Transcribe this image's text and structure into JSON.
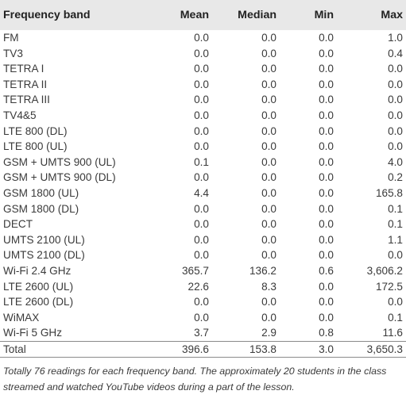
{
  "table": {
    "headers": [
      "Frequency band",
      "Mean",
      "Median",
      "Min",
      "Max"
    ],
    "rows": [
      [
        "FM",
        "0.0",
        "0.0",
        "0.0",
        "1.0"
      ],
      [
        "TV3",
        "0.0",
        "0.0",
        "0.0",
        "0.4"
      ],
      [
        "TETRA I",
        "0.0",
        "0.0",
        "0.0",
        "0.0"
      ],
      [
        "TETRA II",
        "0.0",
        "0.0",
        "0.0",
        "0.0"
      ],
      [
        "TETRA III",
        "0.0",
        "0.0",
        "0.0",
        "0.0"
      ],
      [
        "TV4&5",
        "0.0",
        "0.0",
        "0.0",
        "0.0"
      ],
      [
        "LTE 800 (DL)",
        "0.0",
        "0.0",
        "0.0",
        "0.0"
      ],
      [
        "LTE 800 (UL)",
        "0.0",
        "0.0",
        "0.0",
        "0.0"
      ],
      [
        "GSM + UMTS 900 (UL)",
        "0.1",
        "0.0",
        "0.0",
        "4.0"
      ],
      [
        "GSM + UMTS 900 (DL)",
        "0.0",
        "0.0",
        "0.0",
        "0.2"
      ],
      [
        "GSM 1800 (UL)",
        "4.4",
        "0.0",
        "0.0",
        "165.8"
      ],
      [
        "GSM 1800 (DL)",
        "0.0",
        "0.0",
        "0.0",
        "0.1"
      ],
      [
        "DECT",
        "0.0",
        "0.0",
        "0.0",
        "0.1"
      ],
      [
        "UMTS 2100 (UL)",
        "0.0",
        "0.0",
        "0.0",
        "1.1"
      ],
      [
        "UMTS 2100 (DL)",
        "0.0",
        "0.0",
        "0.0",
        "0.0"
      ],
      [
        "Wi-Fi 2.4 GHz",
        "365.7",
        "136.2",
        "0.6",
        "3,606.2"
      ],
      [
        "LTE 2600 (UL)",
        "22.6",
        "8.3",
        "0.0",
        "172.5"
      ],
      [
        "LTE 2600 (DL)",
        "0.0",
        "0.0",
        "0.0",
        "0.0"
      ],
      [
        "WiMAX",
        "0.0",
        "0.0",
        "0.0",
        "0.1"
      ],
      [
        "Wi-Fi 5 GHz",
        "3.7",
        "2.9",
        "0.8",
        "11.6"
      ]
    ],
    "total": [
      "Total",
      "396.6",
      "153.8",
      "3.0",
      "3,650.3"
    ]
  },
  "footnote": "Totally 76 readings for each frequency band. The approximately 20 students in the class streamed and watched YouTube videos during a part of the lesson."
}
